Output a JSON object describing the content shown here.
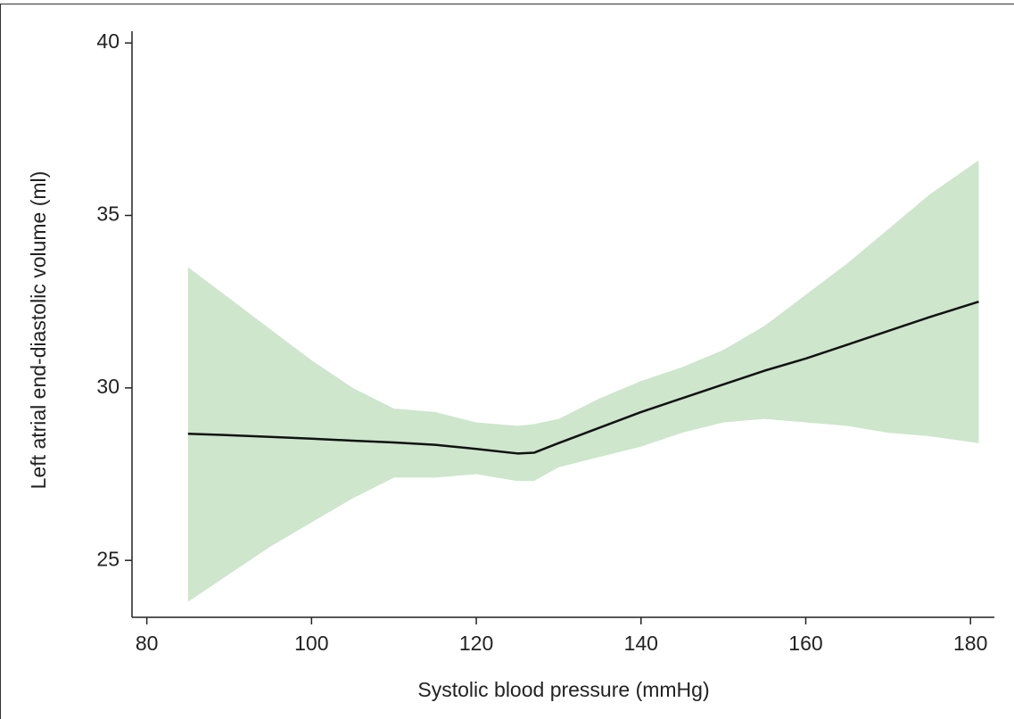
{
  "chart_data": {
    "type": "line",
    "x_label": "Systolic blood pressure (mmHg)",
    "y_label": "Left atrial end-diastolic volume (ml)",
    "x": [
      85,
      90,
      95,
      100,
      105,
      110,
      115,
      120,
      125,
      127,
      130,
      135,
      140,
      145,
      150,
      155,
      160,
      165,
      170,
      175,
      181
    ],
    "values": [
      28.67,
      28.63,
      28.58,
      28.53,
      28.47,
      28.42,
      28.35,
      28.23,
      28.1,
      28.12,
      28.4,
      28.85,
      29.3,
      29.7,
      30.1,
      30.5,
      30.85,
      31.25,
      31.65,
      32.05,
      32.5
    ],
    "band_upper": [
      33.5,
      32.6,
      31.7,
      30.8,
      30.0,
      29.4,
      29.3,
      29.0,
      28.9,
      28.95,
      29.1,
      29.7,
      30.2,
      30.6,
      31.1,
      31.8,
      32.7,
      33.6,
      34.6,
      35.6,
      36.6
    ],
    "band_lower": [
      23.8,
      24.6,
      25.4,
      26.1,
      26.8,
      27.4,
      27.4,
      27.5,
      27.3,
      27.3,
      27.7,
      28.0,
      28.3,
      28.7,
      29.0,
      29.1,
      29.0,
      28.9,
      28.7,
      28.6,
      28.4
    ],
    "color": "#111111",
    "band_color": "#cde6cc",
    "xlim": [
      78.2,
      182.9
    ],
    "ylim": [
      23.35,
      40.34
    ],
    "xticks": [
      80,
      100,
      120,
      140,
      160,
      180
    ],
    "yticks": [
      25,
      30,
      35,
      40
    ]
  }
}
